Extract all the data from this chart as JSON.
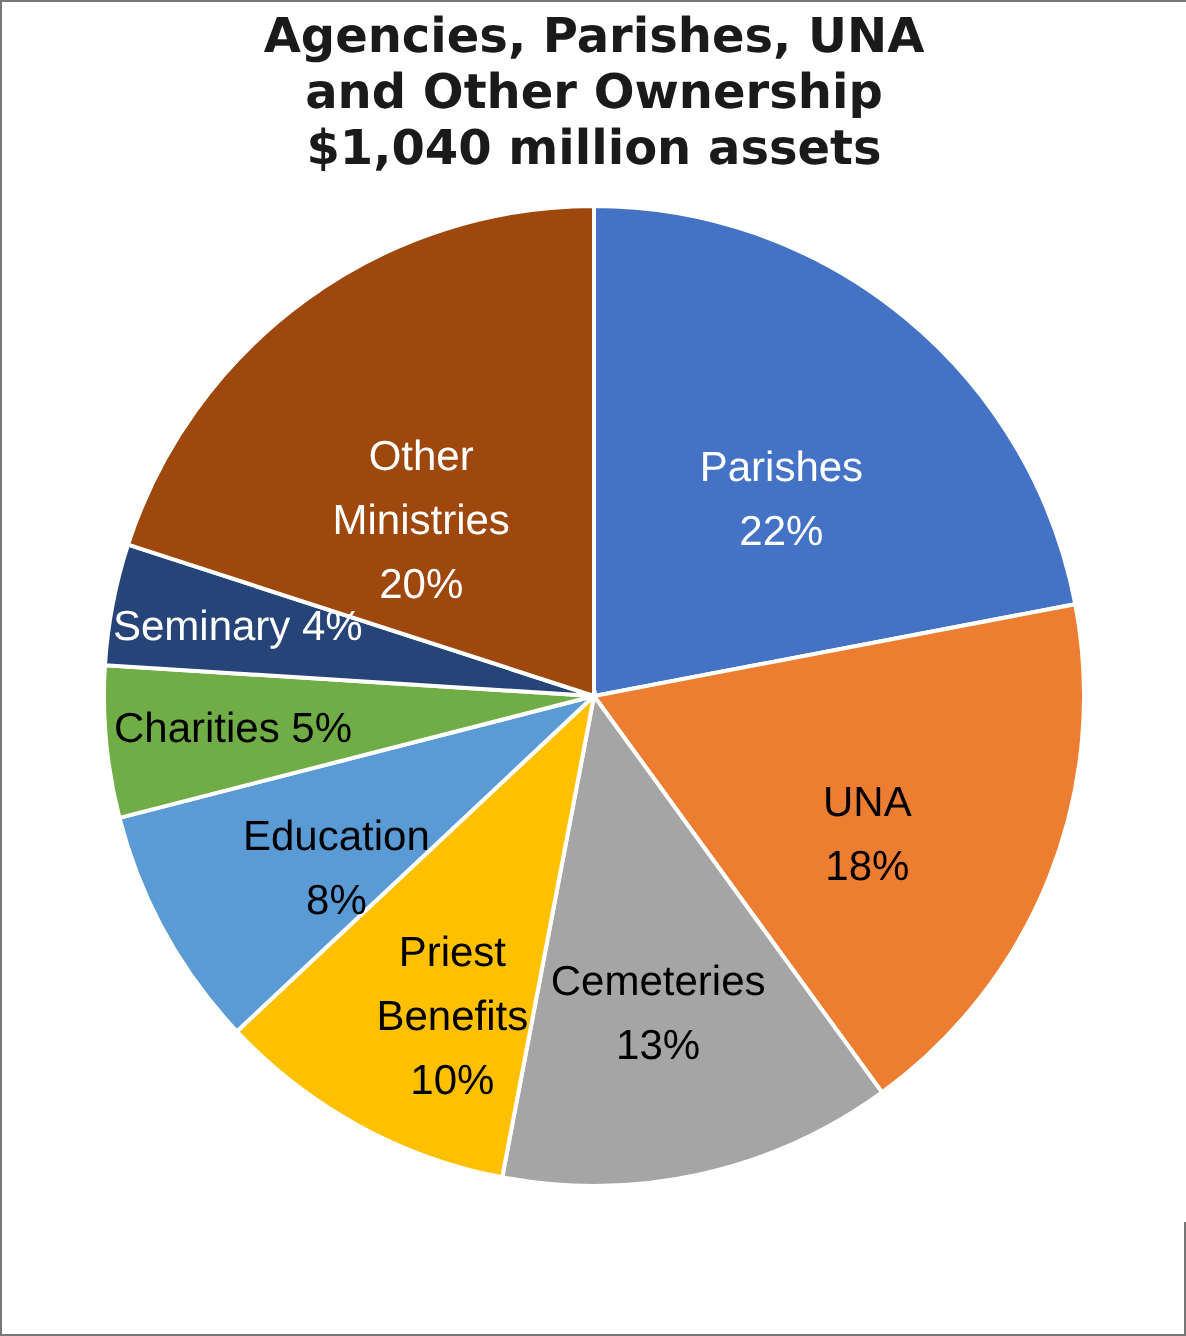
{
  "chart_data": {
    "type": "pie",
    "title": "Agencies, Parishes, UNA\nand Other Ownership\n$1,040 million assets",
    "categories": [
      "Parishes",
      "UNA",
      "Cemeteries",
      "Priest Benefits",
      "Education",
      "Charities",
      "Seminary",
      "Other Ministries"
    ],
    "values": [
      22,
      18,
      13,
      10,
      8,
      5,
      4,
      20
    ],
    "value_labels": [
      "22%",
      "18%",
      "13%",
      "10%",
      "8%",
      "5%",
      "4%",
      "20%"
    ],
    "colors": [
      "#4472c4",
      "#ed7d31",
      "#a5a5a5",
      "#ffc000",
      "#5b9bd5",
      "#70ad47",
      "#264478",
      "#9e480e"
    ],
    "legend": false
  }
}
